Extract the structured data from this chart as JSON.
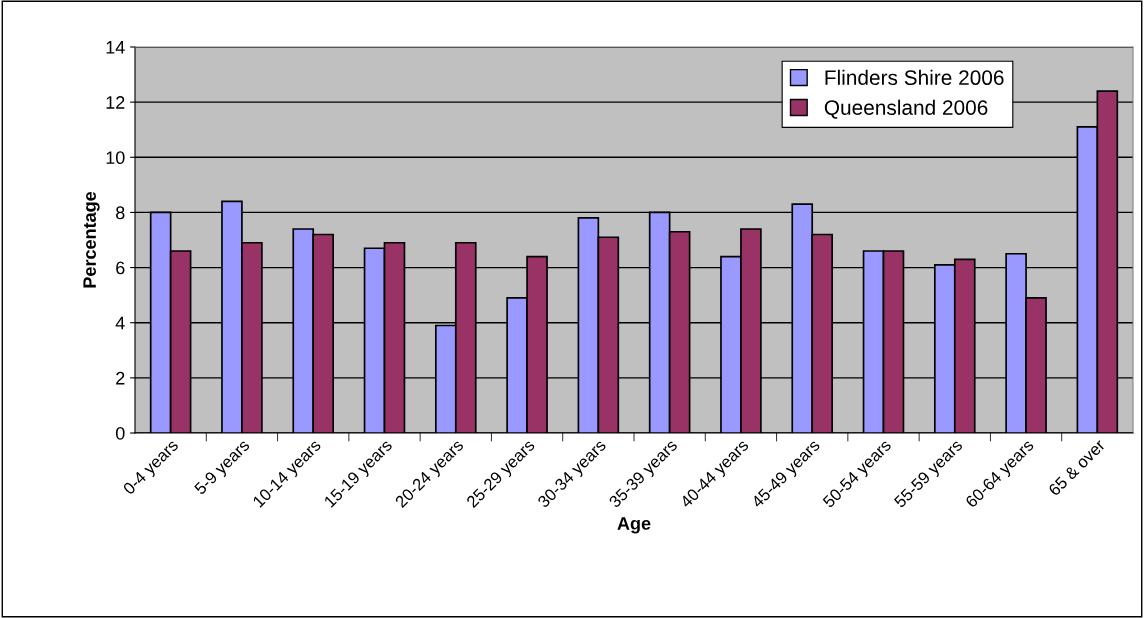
{
  "chart_data": {
    "type": "bar",
    "xlabel": "Age",
    "ylabel": "Percentage",
    "categories": [
      "0-4 years",
      "5-9 years",
      "10-14 years",
      "15-19 years",
      "20-24 years",
      "25-29 years",
      "30-34 years",
      "35-39 years",
      "40-44 years",
      "45-49 years",
      "50-54 years",
      "55-59 years",
      "60-64 years",
      "65 & over"
    ],
    "series": [
      {
        "name": "Flinders Shire 2006",
        "color": "#9999ff",
        "values": [
          8.0,
          8.4,
          7.4,
          6.7,
          3.9,
          4.9,
          7.8,
          8.0,
          6.4,
          8.3,
          6.6,
          6.1,
          6.5,
          11.1
        ]
      },
      {
        "name": "Queensland 2006",
        "color": "#993366",
        "values": [
          6.6,
          6.9,
          7.2,
          6.9,
          6.9,
          6.4,
          7.1,
          7.3,
          7.4,
          7.2,
          6.6,
          6.3,
          4.9,
          12.4
        ]
      }
    ],
    "ylim": [
      0,
      14
    ],
    "yticks": [
      0,
      2,
      4,
      6,
      8,
      10,
      12,
      14
    ],
    "grid": "y",
    "legend": "top right"
  }
}
